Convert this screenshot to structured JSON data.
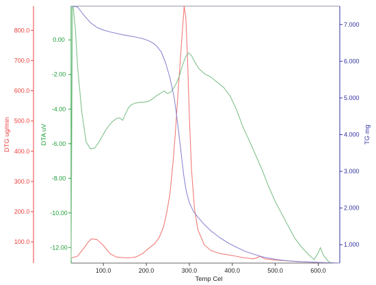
{
  "chart_data": {
    "type": "line",
    "x_axis": {
      "label": "Temp Cel",
      "range": [
        25,
        650
      ],
      "ticks": [
        100,
        200,
        300,
        400,
        500,
        600
      ],
      "tick_labels": [
        "100.0",
        "200.0",
        "300.0",
        "400.0",
        "500.0",
        "600.0"
      ]
    },
    "axes": {
      "dtg": {
        "label": "DTG ug/min",
        "color": "#e8413c",
        "range": [
          30,
          880
        ],
        "ticks": [
          100,
          200,
          300,
          400,
          500,
          600,
          700,
          800
        ],
        "tick_labels": [
          "100.0",
          "200.0",
          "300.0",
          "400.0",
          "500.0",
          "600.0",
          "700.0",
          "800.0"
        ]
      },
      "dta": {
        "label": "DTA uV",
        "color": "#1f9e3a",
        "range": [
          -12.9,
          1.95
        ],
        "ticks": [
          0,
          -2,
          -4,
          -6,
          -8,
          -10,
          -12
        ],
        "tick_labels": [
          "0.00",
          "-2.00",
          "-4.00",
          "-6.00",
          "-8.00",
          "-10.00",
          "-12.00"
        ]
      },
      "tg": {
        "label": "TG mg",
        "color": "#2f2fa0",
        "range": [
          0.5,
          7.5
        ],
        "ticks": [
          1,
          2,
          3,
          4,
          5,
          6,
          7
        ],
        "tick_labels": [
          "1.000",
          "2.000",
          "3.000",
          "4.000",
          "5.000",
          "6.000",
          "7.000"
        ]
      }
    },
    "series": [
      {
        "axis": "dtg",
        "color": "#f07a76",
        "points": [
          [
            25,
            46
          ],
          [
            40,
            53
          ],
          [
            55,
            80
          ],
          [
            65,
            100
          ],
          [
            72,
            110
          ],
          [
            85,
            108
          ],
          [
            100,
            88
          ],
          [
            115,
            62
          ],
          [
            130,
            50
          ],
          [
            145,
            48
          ],
          [
            160,
            47
          ],
          [
            175,
            50
          ],
          [
            190,
            60
          ],
          [
            205,
            78
          ],
          [
            220,
            95
          ],
          [
            230,
            115
          ],
          [
            240,
            150
          ],
          [
            248,
            200
          ],
          [
            255,
            260
          ],
          [
            262,
            360
          ],
          [
            268,
            470
          ],
          [
            274,
            600
          ],
          [
            280,
            720
          ],
          [
            285,
            820
          ],
          [
            288,
            880
          ],
          [
            292,
            840
          ],
          [
            296,
            700
          ],
          [
            300,
            520
          ],
          [
            305,
            340
          ],
          [
            312,
            210
          ],
          [
            320,
            140
          ],
          [
            335,
            90
          ],
          [
            350,
            72
          ],
          [
            370,
            62
          ],
          [
            400,
            55
          ],
          [
            430,
            47
          ],
          [
            450,
            44
          ],
          [
            465,
            52
          ],
          [
            475,
            44
          ],
          [
            500,
            40
          ],
          [
            550,
            35
          ],
          [
            600,
            32
          ],
          [
            650,
            30
          ]
        ]
      },
      {
        "axis": "dta",
        "color": "#7fc08a",
        "points": [
          [
            25,
            -12.7
          ],
          [
            28,
            1.9
          ],
          [
            30,
            1.9
          ],
          [
            35,
            0.6
          ],
          [
            40,
            -1.5
          ],
          [
            50,
            -4.2
          ],
          [
            60,
            -5.9
          ],
          [
            70,
            -6.3
          ],
          [
            80,
            -6.25
          ],
          [
            90,
            -5.9
          ],
          [
            100,
            -5.45
          ],
          [
            110,
            -5.05
          ],
          [
            120,
            -4.75
          ],
          [
            130,
            -4.55
          ],
          [
            138,
            -4.5
          ],
          [
            145,
            -4.65
          ],
          [
            150,
            -4.35
          ],
          [
            158,
            -3.95
          ],
          [
            165,
            -3.75
          ],
          [
            175,
            -3.65
          ],
          [
            185,
            -3.6
          ],
          [
            195,
            -3.6
          ],
          [
            205,
            -3.55
          ],
          [
            215,
            -3.4
          ],
          [
            225,
            -3.2
          ],
          [
            235,
            -3.05
          ],
          [
            242,
            -2.95
          ],
          [
            248,
            -3.1
          ],
          [
            255,
            -3.05
          ],
          [
            262,
            -2.85
          ],
          [
            270,
            -2.5
          ],
          [
            278,
            -2.0
          ],
          [
            285,
            -1.4
          ],
          [
            292,
            -0.95
          ],
          [
            298,
            -0.75
          ],
          [
            305,
            -0.9
          ],
          [
            312,
            -1.25
          ],
          [
            322,
            -1.65
          ],
          [
            335,
            -1.95
          ],
          [
            350,
            -2.15
          ],
          [
            365,
            -2.45
          ],
          [
            380,
            -2.75
          ],
          [
            395,
            -3.25
          ],
          [
            410,
            -4.05
          ],
          [
            425,
            -5.05
          ],
          [
            440,
            -5.85
          ],
          [
            455,
            -6.7
          ],
          [
            470,
            -7.55
          ],
          [
            485,
            -8.5
          ],
          [
            500,
            -9.35
          ],
          [
            515,
            -10.05
          ],
          [
            530,
            -10.75
          ],
          [
            545,
            -11.45
          ],
          [
            560,
            -11.95
          ],
          [
            575,
            -12.35
          ],
          [
            590,
            -12.7
          ],
          [
            600,
            -12.3
          ],
          [
            605,
            -12.0
          ],
          [
            612,
            -12.45
          ],
          [
            625,
            -12.85
          ],
          [
            640,
            -12.9
          ],
          [
            650,
            -12.9
          ]
        ]
      },
      {
        "axis": "tg",
        "color": "#8a87d2",
        "points": [
          [
            25,
            7.5
          ],
          [
            40,
            7.48
          ],
          [
            55,
            7.25
          ],
          [
            70,
            7.05
          ],
          [
            85,
            6.92
          ],
          [
            100,
            6.85
          ],
          [
            115,
            6.8
          ],
          [
            130,
            6.76
          ],
          [
            145,
            6.72
          ],
          [
            160,
            6.69
          ],
          [
            175,
            6.66
          ],
          [
            190,
            6.62
          ],
          [
            205,
            6.56
          ],
          [
            215,
            6.5
          ],
          [
            225,
            6.4
          ],
          [
            235,
            6.25
          ],
          [
            245,
            5.95
          ],
          [
            255,
            5.55
          ],
          [
            265,
            5.0
          ],
          [
            273,
            4.3
          ],
          [
            280,
            3.6
          ],
          [
            287,
            2.9
          ],
          [
            293,
            2.45
          ],
          [
            300,
            2.15
          ],
          [
            310,
            1.9
          ],
          [
            320,
            1.75
          ],
          [
            335,
            1.55
          ],
          [
            350,
            1.38
          ],
          [
            370,
            1.2
          ],
          [
            390,
            1.05
          ],
          [
            410,
            0.93
          ],
          [
            430,
            0.82
          ],
          [
            450,
            0.74
          ],
          [
            470,
            0.67
          ],
          [
            500,
            0.6
          ],
          [
            530,
            0.56
          ],
          [
            560,
            0.54
          ],
          [
            600,
            0.52
          ],
          [
            650,
            0.5
          ]
        ]
      }
    ]
  }
}
